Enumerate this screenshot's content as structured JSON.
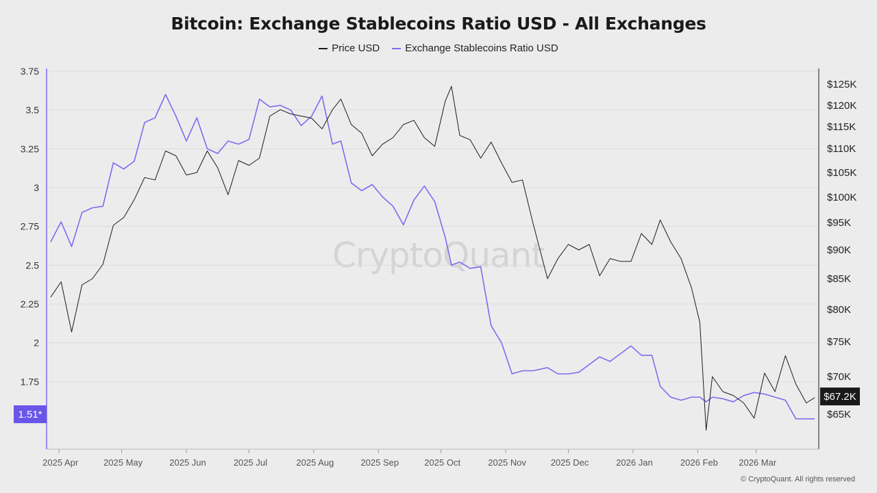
{
  "chart_data": {
    "type": "line",
    "title": "Bitcoin: Exchange Stablecoins Ratio USD - All Exchanges",
    "legend_position": "top-center",
    "grid": true,
    "x_tick_labels": [
      "2025 Apr",
      "2025 May",
      "2025 Jun",
      "2025 Jul",
      "2025 Aug",
      "2025 Sep",
      "2025 Oct",
      "2025 Nov",
      "2025 Dec",
      "2026 Jan",
      "2026 Feb",
      "2026 Mar"
    ],
    "x_range": [
      "2025-03-28",
      "2026-03-29"
    ],
    "y_left": {
      "ticks": [
        "3.75",
        "3.5",
        "3.25",
        "3",
        "2.75",
        "2.5",
        "2.25",
        "2",
        "1.75"
      ],
      "range": [
        1.5,
        3.75
      ]
    },
    "y_right": {
      "ticks": [
        "$125K",
        "$120K",
        "$115K",
        "$110K",
        "$105K",
        "$100K",
        "$95K",
        "$90K",
        "$85K",
        "$80K",
        "$75K",
        "$70K",
        "$65K"
      ],
      "range": [
        60000,
        125000
      ]
    },
    "series": [
      {
        "name": "Price USD",
        "axis": "right",
        "color": "#1a1a1a",
        "x": [
          "2025-03-28",
          "2025-04-02",
          "2025-04-07",
          "2025-04-12",
          "2025-04-17",
          "2025-04-22",
          "2025-04-27",
          "2025-05-02",
          "2025-05-07",
          "2025-05-12",
          "2025-05-17",
          "2025-05-22",
          "2025-05-27",
          "2025-06-01",
          "2025-06-06",
          "2025-06-11",
          "2025-06-16",
          "2025-06-21",
          "2025-06-26",
          "2025-07-01",
          "2025-07-06",
          "2025-07-11",
          "2025-07-16",
          "2025-07-21",
          "2025-07-26",
          "2025-07-31",
          "2025-08-05",
          "2025-08-10",
          "2025-08-14",
          "2025-08-19",
          "2025-08-24",
          "2025-08-29",
          "2025-09-03",
          "2025-09-08",
          "2025-09-13",
          "2025-09-18",
          "2025-09-23",
          "2025-09-28",
          "2025-10-03",
          "2025-10-06",
          "2025-10-10",
          "2025-10-15",
          "2025-10-20",
          "2025-10-25",
          "2025-10-30",
          "2025-11-04",
          "2025-11-09",
          "2025-11-14",
          "2025-11-21",
          "2025-11-26",
          "2025-12-01",
          "2025-12-06",
          "2025-12-11",
          "2025-12-16",
          "2025-12-21",
          "2025-12-26",
          "2025-12-31",
          "2026-01-05",
          "2026-01-10",
          "2026-01-14",
          "2026-01-19",
          "2026-01-24",
          "2026-01-29",
          "2026-02-02",
          "2026-02-05",
          "2026-02-08",
          "2026-02-13",
          "2026-02-18",
          "2026-02-23",
          "2026-02-28",
          "2026-03-05",
          "2026-03-10",
          "2026-03-15",
          "2026-03-20",
          "2026-03-25",
          "2026-03-29"
        ],
        "y": [
          82000,
          84500,
          76500,
          84000,
          85000,
          87500,
          94500,
          96000,
          99500,
          104000,
          103500,
          109500,
          108500,
          104500,
          105000,
          109500,
          106000,
          100500,
          107500,
          106500,
          108000,
          117500,
          119000,
          118000,
          117500,
          117000,
          114500,
          119000,
          121500,
          115500,
          113500,
          108500,
          111000,
          112500,
          115500,
          116500,
          112500,
          110500,
          121000,
          124500,
          113000,
          112000,
          108000,
          111500,
          107000,
          103000,
          103500,
          95000,
          85000,
          88500,
          91000,
          90000,
          91000,
          85500,
          88500,
          88000,
          88000,
          93000,
          91000,
          95500,
          91500,
          88500,
          83500,
          78000,
          63000,
          70000,
          68000,
          67500,
          66500,
          64500,
          70500,
          68000,
          73000,
          69000,
          66500,
          67200
        ]
      },
      {
        "name": "Exchange Stablecoins Ratio USD",
        "axis": "left",
        "color": "#7b6cf0",
        "x": [
          "2025-03-28",
          "2025-04-02",
          "2025-04-07",
          "2025-04-12",
          "2025-04-17",
          "2025-04-22",
          "2025-04-27",
          "2025-05-02",
          "2025-05-07",
          "2025-05-12",
          "2025-05-17",
          "2025-05-22",
          "2025-05-27",
          "2025-06-01",
          "2025-06-06",
          "2025-06-11",
          "2025-06-16",
          "2025-06-21",
          "2025-06-26",
          "2025-07-01",
          "2025-07-06",
          "2025-07-11",
          "2025-07-16",
          "2025-07-21",
          "2025-07-26",
          "2025-07-31",
          "2025-08-05",
          "2025-08-10",
          "2025-08-14",
          "2025-08-19",
          "2025-08-24",
          "2025-08-29",
          "2025-09-03",
          "2025-09-08",
          "2025-09-13",
          "2025-09-18",
          "2025-09-23",
          "2025-09-28",
          "2025-10-03",
          "2025-10-06",
          "2025-10-10",
          "2025-10-15",
          "2025-10-20",
          "2025-10-25",
          "2025-10-30",
          "2025-11-04",
          "2025-11-09",
          "2025-11-14",
          "2025-11-21",
          "2025-11-26",
          "2025-12-01",
          "2025-12-06",
          "2025-12-11",
          "2025-12-16",
          "2025-12-21",
          "2025-12-26",
          "2025-12-31",
          "2026-01-05",
          "2026-01-10",
          "2026-01-14",
          "2026-01-19",
          "2026-01-24",
          "2026-01-29",
          "2026-02-02",
          "2026-02-05",
          "2026-02-08",
          "2026-02-13",
          "2026-02-18",
          "2026-02-23",
          "2026-02-28",
          "2026-03-05",
          "2026-03-10",
          "2026-03-15",
          "2026-03-20",
          "2026-03-25",
          "2026-03-29"
        ],
        "y": [
          2.65,
          2.78,
          2.62,
          2.84,
          2.87,
          2.88,
          3.16,
          3.12,
          3.17,
          3.42,
          3.45,
          3.6,
          3.46,
          3.3,
          3.45,
          3.25,
          3.22,
          3.3,
          3.28,
          3.31,
          3.57,
          3.52,
          3.53,
          3.5,
          3.4,
          3.46,
          3.59,
          3.28,
          3.3,
          3.03,
          2.98,
          3.02,
          2.94,
          2.88,
          2.76,
          2.92,
          3.01,
          2.91,
          2.68,
          2.5,
          2.52,
          2.48,
          2.49,
          2.11,
          2.0,
          1.8,
          1.82,
          1.82,
          1.84,
          1.8,
          1.8,
          1.81,
          1.86,
          1.91,
          1.88,
          1.93,
          1.98,
          1.92,
          1.92,
          1.72,
          1.65,
          1.63,
          1.65,
          1.65,
          1.62,
          1.65,
          1.64,
          1.62,
          1.66,
          1.68,
          1.67,
          1.65,
          1.63,
          1.51,
          1.51,
          1.51
        ]
      }
    ],
    "last_value_left": "1.51*",
    "last_value_right": "$67.2K"
  },
  "watermark": "CryptoQuant",
  "copyright": "© CryptoQuant. All rights reserved"
}
